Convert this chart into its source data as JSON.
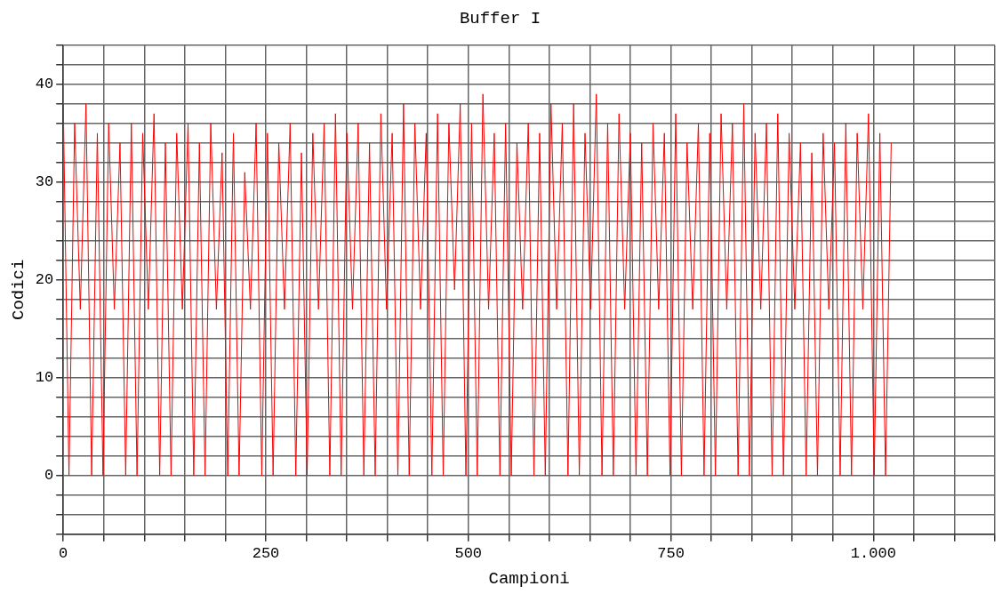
{
  "chart_data": {
    "type": "line",
    "title": "Buffer I",
    "xlabel": "Campioni",
    "ylabel": "Codici",
    "x": [
      0,
      7,
      14,
      21,
      28,
      35,
      42,
      49,
      56,
      63,
      70,
      77,
      84,
      91,
      98,
      105,
      112,
      119,
      126,
      133,
      140,
      147,
      154,
      161,
      168,
      175,
      182,
      189,
      196,
      203,
      210,
      217,
      224,
      231,
      238,
      245,
      252,
      259,
      266,
      273,
      280,
      287,
      294,
      301,
      308,
      315,
      322,
      329,
      336,
      343,
      350,
      357,
      364,
      371,
      378,
      385,
      392,
      399,
      406,
      413,
      420,
      427,
      434,
      441,
      448,
      455,
      462,
      469,
      476,
      483,
      490,
      497,
      504,
      511,
      518,
      525,
      532,
      539,
      546,
      553,
      560,
      567,
      574,
      581,
      588,
      595,
      602,
      609,
      616,
      623,
      630,
      637,
      644,
      651,
      658,
      665,
      672,
      679,
      686,
      693,
      700,
      707,
      714,
      721,
      728,
      735,
      742,
      749,
      756,
      763,
      770,
      777,
      784,
      791,
      798,
      805,
      812,
      819,
      826,
      833,
      840,
      847,
      854,
      861,
      868,
      875,
      882,
      889,
      896,
      903,
      910,
      917,
      924,
      931,
      938,
      945,
      952,
      959,
      966,
      973,
      980,
      987,
      994,
      1001,
      1008,
      1015,
      1022
    ],
    "series": [
      {
        "color": "#ff0000",
        "values": [
          38,
          0,
          36,
          17,
          38,
          0,
          35,
          0,
          36,
          17,
          34,
          0,
          36,
          0,
          35,
          17,
          37,
          0,
          34,
          0,
          35,
          17,
          36,
          0,
          34,
          0,
          36,
          17,
          33,
          0,
          35,
          0,
          31,
          17,
          36,
          0,
          35,
          0,
          34,
          17,
          36,
          0,
          33,
          0,
          35,
          17,
          36,
          0,
          37,
          0,
          35,
          17,
          36,
          0,
          34,
          0,
          37,
          17,
          35,
          0,
          38,
          0,
          36,
          17,
          35,
          0,
          37,
          0,
          36,
          19,
          38,
          0,
          36,
          0,
          39,
          17,
          35,
          0,
          36,
          0,
          34,
          17,
          36,
          0,
          35,
          0,
          38,
          17,
          36,
          0,
          38,
          0,
          35,
          17,
          39,
          0,
          36,
          0,
          37,
          17,
          35,
          0,
          34,
          0,
          36,
          17,
          35,
          0,
          37,
          0,
          34,
          17,
          36,
          0,
          35,
          0,
          37,
          17,
          36,
          0,
          38,
          0,
          35,
          17,
          36,
          0,
          37,
          0,
          35,
          17,
          34,
          0,
          33,
          0,
          35,
          17,
          34,
          0,
          36,
          0,
          35,
          17,
          37,
          0,
          35,
          0,
          34
        ]
      }
    ],
    "xlim": [
      0,
      1150
    ],
    "xticks": [
      0,
      {
        "value": 50,
        "label": null
      },
      {
        "value": 100,
        "label": null
      },
      {
        "value": 150,
        "label": null
      },
      {
        "value": 200,
        "label": null
      },
      250,
      {
        "value": 300,
        "label": null
      },
      {
        "value": 350,
        "label": null
      },
      {
        "value": 400,
        "label": null
      },
      {
        "value": 450,
        "label": null
      },
      500,
      {
        "value": 550,
        "label": null
      },
      {
        "value": 600,
        "label": null
      },
      {
        "value": 650,
        "label": null
      },
      {
        "value": 700,
        "label": null
      },
      750,
      {
        "value": 800,
        "label": null
      },
      {
        "value": 850,
        "label": null
      },
      {
        "value": 900,
        "label": null
      },
      {
        "value": 950,
        "label": null
      },
      {
        "value": 1000,
        "label": "1.000"
      },
      {
        "value": 1050,
        "label": null
      },
      {
        "value": 1100,
        "label": null
      },
      {
        "value": 1150,
        "label": null
      }
    ],
    "ylim": [
      -6,
      44
    ],
    "yticks": [
      {
        "value": -6,
        "label": null
      },
      {
        "value": -4,
        "label": null
      },
      {
        "value": -2,
        "label": null
      },
      0,
      {
        "value": 2,
        "label": null
      },
      {
        "value": 4,
        "label": null
      },
      {
        "value": 6,
        "label": null
      },
      {
        "value": 8,
        "label": null
      },
      10,
      {
        "value": 12,
        "label": null
      },
      {
        "value": 14,
        "label": null
      },
      {
        "value": 16,
        "label": null
      },
      {
        "value": 18,
        "label": null
      },
      20,
      {
        "value": 22,
        "label": null
      },
      {
        "value": 24,
        "label": null
      },
      {
        "value": 26,
        "label": null
      },
      {
        "value": 28,
        "label": null
      },
      30,
      {
        "value": 32,
        "label": null
      },
      {
        "value": 34,
        "label": null
      },
      {
        "value": 36,
        "label": null
      },
      {
        "value": 38,
        "label": null
      },
      40,
      {
        "value": 42,
        "label": null
      },
      {
        "value": 44,
        "label": null
      }
    ],
    "grid": true,
    "legend": false,
    "marker": "none",
    "line_style": "solid"
  }
}
